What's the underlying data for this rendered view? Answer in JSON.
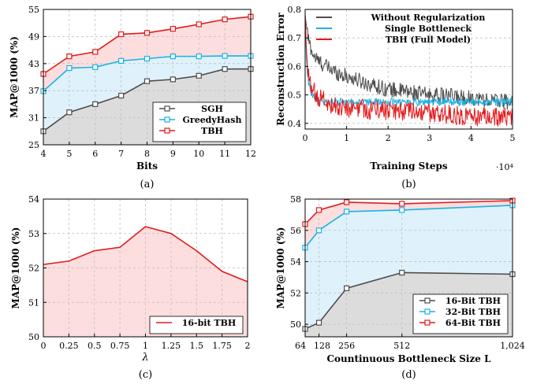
{
  "colors": {
    "gray": "#4d4d4d",
    "blue": "#1ab2e6",
    "red": "#e31a1c",
    "grayFill": "#dcdcdc",
    "blueFill": "#dff2fb",
    "redFill": "#fcdede"
  },
  "chart_data": [
    {
      "id": "a",
      "type": "line",
      "caption": "(a)",
      "xlabel": "Bits",
      "ylabel": "MAP@1000 (%)",
      "x": [
        4,
        5,
        6,
        7,
        8,
        9,
        10,
        11,
        12
      ],
      "xlim": [
        4,
        12
      ],
      "xticks": [
        4,
        5,
        6,
        7,
        8,
        9,
        10,
        11,
        12
      ],
      "yticks": [
        25,
        31,
        37,
        43,
        49,
        55
      ],
      "ylim": [
        25,
        55
      ],
      "grid": true,
      "legend_position": "bottom-right",
      "markers": "square",
      "series": [
        {
          "name": "SGH",
          "color": "gray",
          "fill": "grayFill",
          "values": [
            28.0,
            32.2,
            34.0,
            35.9,
            39.1,
            39.5,
            40.3,
            41.8,
            41.8
          ]
        },
        {
          "name": "GreedyHash",
          "color": "blue",
          "fill": "blueFill",
          "values": [
            36.9,
            42.0,
            42.2,
            43.6,
            44.1,
            44.6,
            44.6,
            44.7,
            44.7
          ]
        },
        {
          "name": "TBH",
          "color": "red",
          "fill": "redFill",
          "values": [
            40.7,
            44.6,
            45.6,
            49.5,
            49.8,
            50.7,
            51.7,
            52.8,
            53.4
          ]
        }
      ]
    },
    {
      "id": "b",
      "type": "line",
      "caption": "(b)",
      "xlabel": "Training Steps",
      "ylabel": "Reconstruction Error",
      "xmultiplier": "·10⁴",
      "xlim": [
        0,
        5
      ],
      "xticks": [
        0,
        1,
        2,
        3,
        4,
        5
      ],
      "yticks": [
        0.4,
        0.5,
        0.6,
        0.7,
        0.8
      ],
      "ylim": [
        0.38,
        0.8
      ],
      "grid": true,
      "legend_position": "top-right",
      "noisy": true,
      "series": [
        {
          "name": "Without Regularization",
          "color": "gray",
          "x": [
            0,
            0.05,
            0.1,
            0.2,
            0.3,
            0.5,
            0.75,
            1,
            1.5,
            2,
            2.5,
            3,
            3.5,
            4,
            4.5,
            5
          ],
          "values": [
            0.78,
            0.72,
            0.68,
            0.64,
            0.62,
            0.6,
            0.58,
            0.565,
            0.54,
            0.52,
            0.51,
            0.5,
            0.495,
            0.49,
            0.48,
            0.475
          ],
          "noise": 0.028
        },
        {
          "name": "Single Bottleneck",
          "color": "blue",
          "x": [
            0,
            0.03,
            0.08,
            0.15,
            0.3,
            0.5,
            1,
            2,
            3,
            4,
            5
          ],
          "values": [
            0.78,
            0.62,
            0.54,
            0.5,
            0.48,
            0.475,
            0.475,
            0.475,
            0.475,
            0.475,
            0.475
          ],
          "noise": 0.014
        },
        {
          "name": "TBH (Full Model)",
          "color": "red",
          "x": [
            0,
            0.03,
            0.08,
            0.15,
            0.3,
            0.5,
            0.75,
            1,
            1.5,
            2,
            2.5,
            3,
            3.5,
            4,
            4.5,
            5
          ],
          "values": [
            0.79,
            0.66,
            0.56,
            0.52,
            0.495,
            0.475,
            0.46,
            0.455,
            0.45,
            0.445,
            0.44,
            0.435,
            0.43,
            0.425,
            0.42,
            0.42
          ],
          "noise": 0.035
        }
      ]
    },
    {
      "id": "c",
      "type": "line",
      "caption": "(c)",
      "xlabel": "λ",
      "ylabel": "MAP@1000 (%)",
      "x": [
        0,
        0.25,
        0.5,
        0.75,
        1,
        1.25,
        1.5,
        1.75,
        2
      ],
      "xlim": [
        0,
        2
      ],
      "xtick_labels": [
        "0",
        "0.25",
        "0.5",
        "0.75",
        "1",
        "1.25",
        "1.5",
        "1.75",
        "2"
      ],
      "yticks": [
        50,
        51,
        52,
        53,
        54
      ],
      "ylim": [
        50,
        54
      ],
      "grid": true,
      "legend_position": "bottom-right",
      "series": [
        {
          "name": "16-bit TBH",
          "color": "red",
          "fill": "redFill",
          "values": [
            52.1,
            52.2,
            52.5,
            52.6,
            53.2,
            53.0,
            52.5,
            51.9,
            51.6
          ]
        }
      ]
    },
    {
      "id": "d",
      "type": "line",
      "caption": "(d)",
      "xlabel": "Countinuous Bottleneck Size L",
      "ylabel": "MAP@1000 (%)",
      "x": [
        64,
        128,
        256,
        512,
        1024
      ],
      "xlim": [
        64,
        1024
      ],
      "xticks": [
        64,
        128,
        256,
        512,
        1024
      ],
      "xtick_labels": [
        "64",
        "128",
        "256",
        "512",
        "1,024"
      ],
      "yticks": [
        50,
        52,
        54,
        56,
        58
      ],
      "ylim": [
        49.2,
        58
      ],
      "grid": true,
      "legend_position": "bottom-right",
      "markers": "square",
      "series": [
        {
          "name": "16-Bit TBH",
          "color": "gray",
          "fill": "grayFill",
          "values": [
            49.7,
            50.1,
            52.3,
            53.3,
            53.2
          ]
        },
        {
          "name": "32-Bit TBH",
          "color": "blue",
          "fill": "blueFill",
          "values": [
            54.9,
            56.0,
            57.2,
            57.3,
            57.6
          ]
        },
        {
          "name": "64-Bit TBH",
          "color": "red",
          "fill": "redFill",
          "values": [
            56.4,
            57.3,
            57.8,
            57.7,
            57.9
          ]
        }
      ]
    }
  ]
}
